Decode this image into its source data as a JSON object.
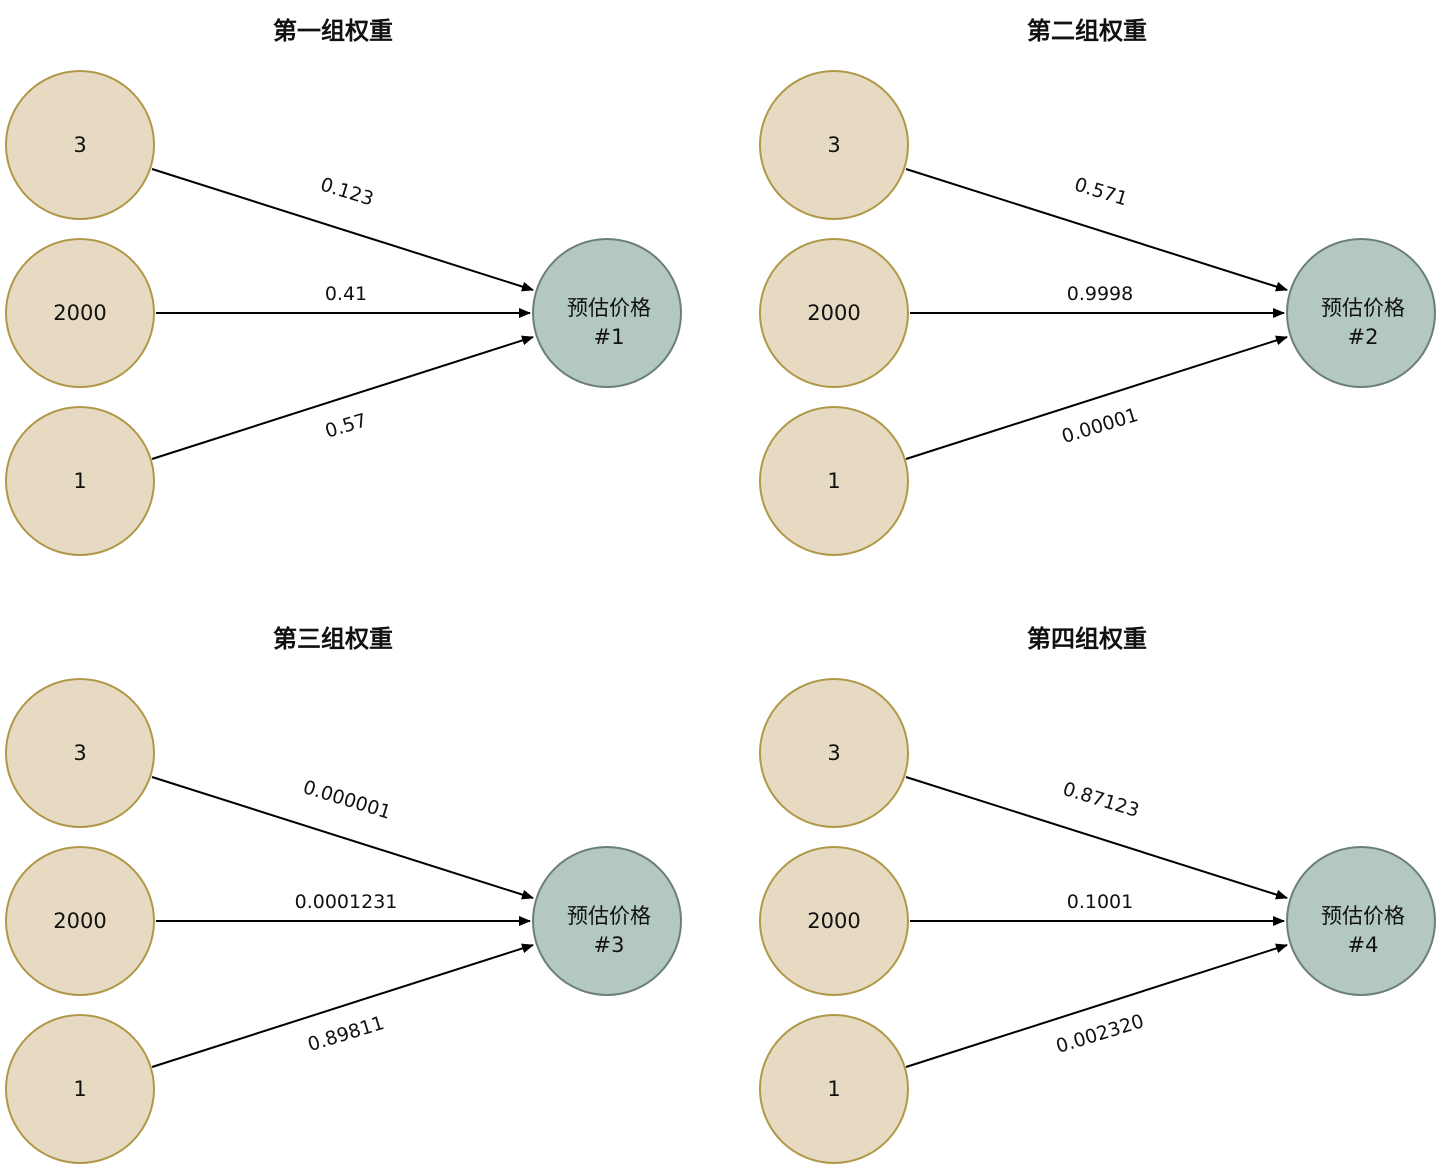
{
  "colors": {
    "input_fill": "#e6dbc2",
    "input_stroke": "#b09848",
    "output_fill": "#b3c8bf",
    "output_stroke": "#6b7f78",
    "edge": "#000000"
  },
  "panels": [
    {
      "title": "第一组权重",
      "inputs": [
        "3",
        "2000",
        "1"
      ],
      "weights": [
        "0.123",
        "0.41",
        "0.57"
      ],
      "output": {
        "line1": "预估价格",
        "line2": "#1"
      }
    },
    {
      "title": "第二组权重",
      "inputs": [
        "3",
        "2000",
        "1"
      ],
      "weights": [
        "0.571",
        "0.9998",
        "0.00001"
      ],
      "output": {
        "line1": "预估价格",
        "line2": "#2"
      }
    },
    {
      "title": "第三组权重",
      "inputs": [
        "3",
        "2000",
        "1"
      ],
      "weights": [
        "0.000001",
        "0.0001231",
        "0.89811"
      ],
      "output": {
        "line1": "预估价格",
        "line2": "#3"
      }
    },
    {
      "title": "第四组权重",
      "inputs": [
        "3",
        "2000",
        "1"
      ],
      "weights": [
        "0.87123",
        "0.1001",
        "0.002320"
      ],
      "output": {
        "line1": "预估价格",
        "line2": "#4"
      }
    }
  ]
}
